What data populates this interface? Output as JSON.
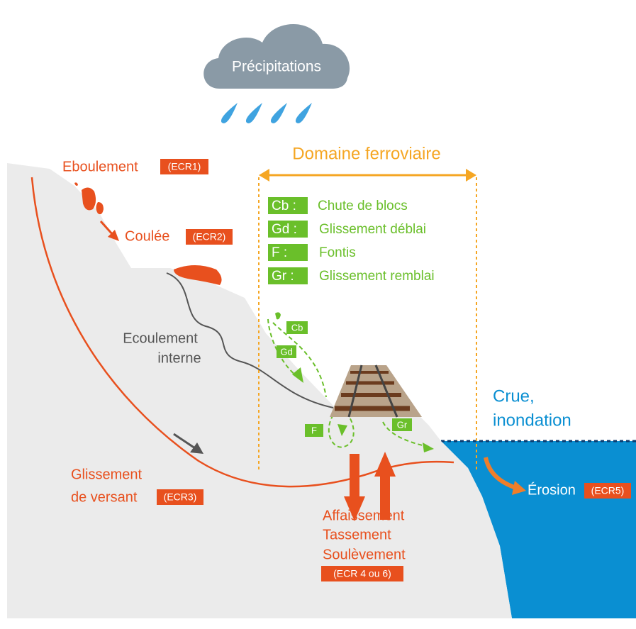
{
  "cloud": {
    "label": "Précipitations"
  },
  "domain": {
    "title": "Domaine ferroviaire"
  },
  "legend": [
    {
      "code": "Cb :",
      "label": "Chute de blocs"
    },
    {
      "code": "Gd :",
      "label": "Glissement déblai"
    },
    {
      "code": "F :",
      "label": "Fontis"
    },
    {
      "code": "Gr :",
      "label": "Glissement remblai"
    }
  ],
  "hazards": {
    "eboulement": {
      "label": "Eboulement",
      "code": "(ECR1)"
    },
    "coulee": {
      "label": "Coulée",
      "code": "(ECR2)"
    },
    "ecoulement": {
      "lines": [
        "Ecoulement",
        "interne"
      ]
    },
    "glissement": {
      "lines": [
        "Glissement",
        "de versant"
      ],
      "code": "(ECR3)"
    },
    "affaissement": {
      "lines": [
        "Affaissement",
        "Tassement",
        "Soulèvement"
      ],
      "code": "(ECR 4 ou 6)"
    },
    "crue": {
      "lines": [
        "Crue,",
        "inondation"
      ]
    },
    "erosion": {
      "label": "Érosion",
      "code": "(ECR5)"
    }
  },
  "small_labels": [
    "Cb",
    "Gd",
    "F",
    "Gr"
  ]
}
